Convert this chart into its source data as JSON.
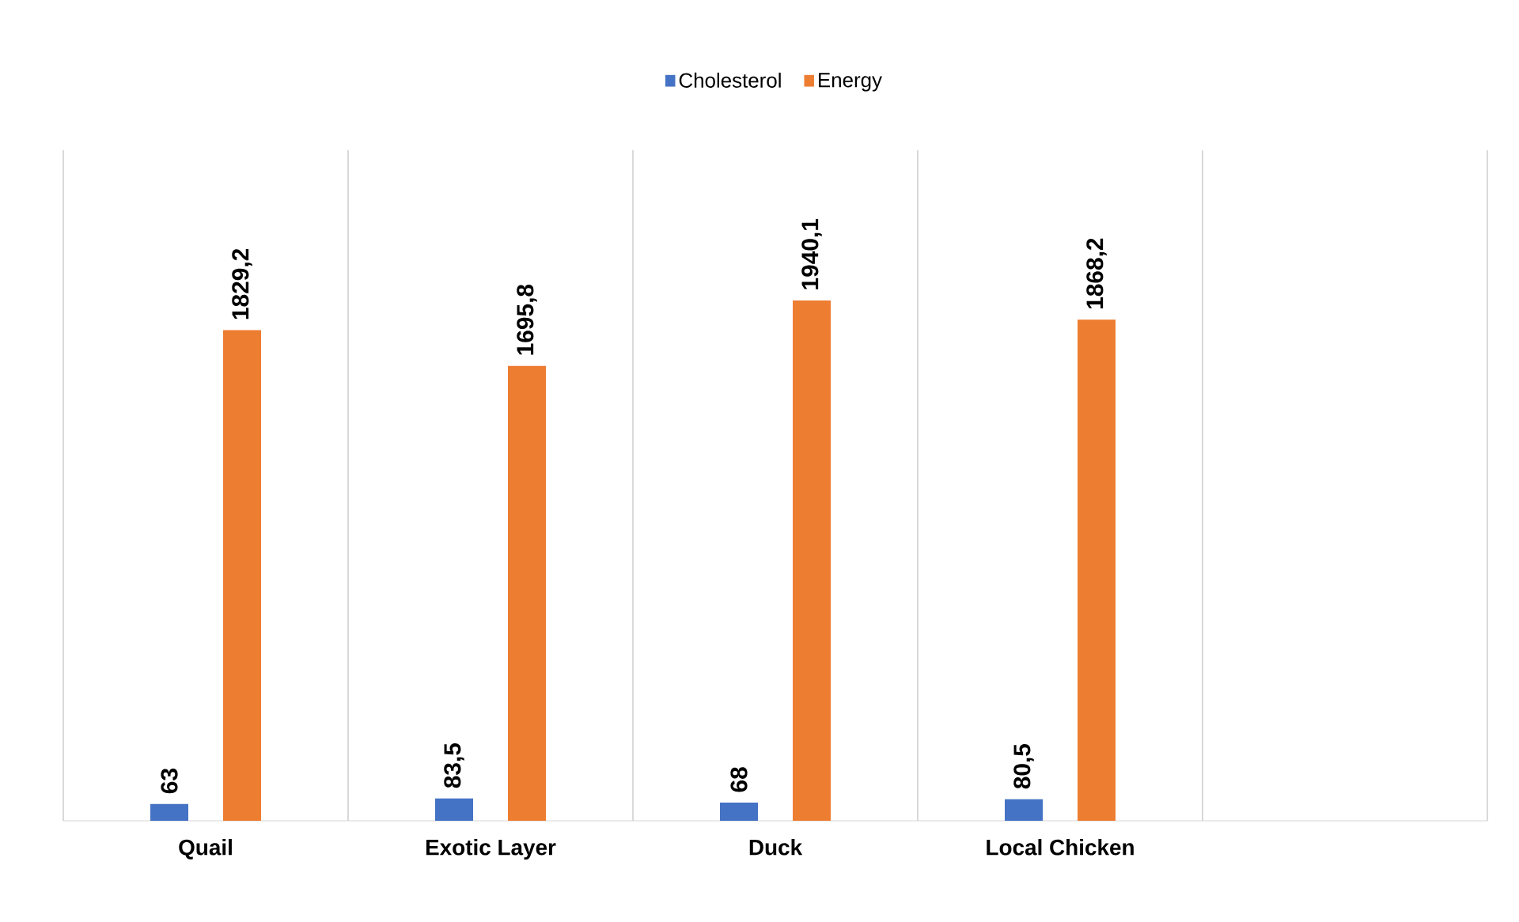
{
  "chart_data": {
    "type": "bar",
    "categories": [
      "Quail",
      "Exotic Layer",
      "Duck",
      "Local Chicken",
      null
    ],
    "series": [
      {
        "name": "Cholesterol",
        "color": "#4472c4",
        "values": [
          63,
          83.5,
          68,
          80.5,
          null
        ],
        "value_labels": [
          "63",
          "83,5",
          "68",
          "80,5",
          null
        ]
      },
      {
        "name": "Energy",
        "color": "#ed7d31",
        "values": [
          1829.2,
          1695.8,
          1940.1,
          1868.2,
          null
        ],
        "value_labels": [
          "1829,2",
          "1695,8",
          "1940,1",
          "1868,2",
          null
        ]
      }
    ],
    "ylim": [
      0,
      2500
    ],
    "grid": "x",
    "legend": "top"
  }
}
